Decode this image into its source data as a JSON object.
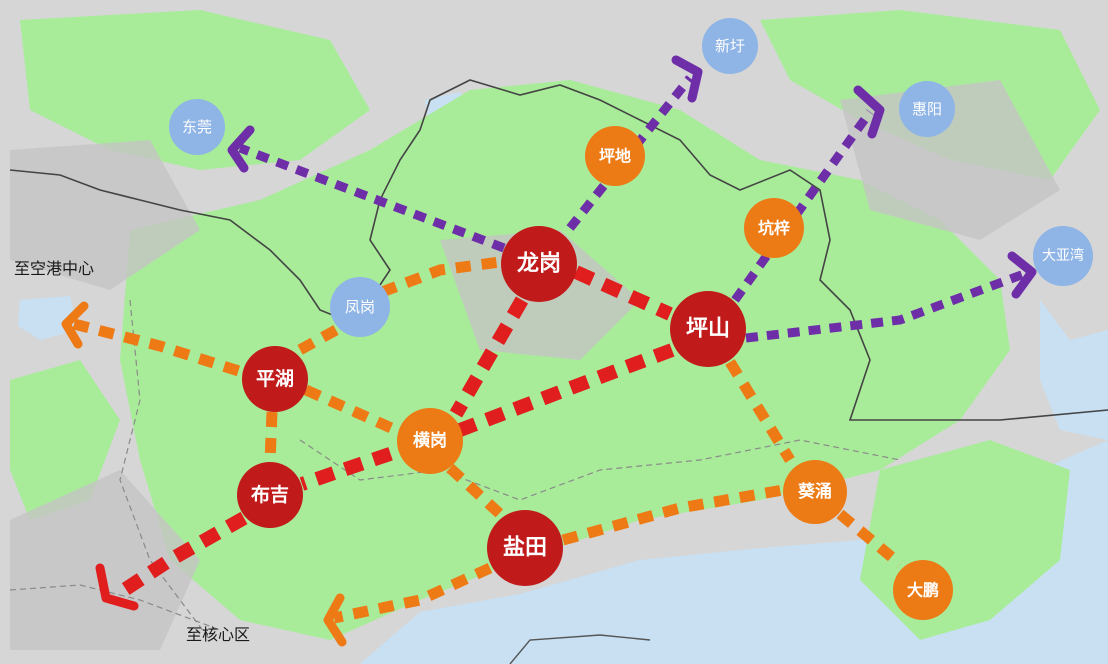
{
  "colors": {
    "sea": "#c8e0f2",
    "land": "#d2d2d2",
    "green": "#a8ec9a",
    "major_node": "#c01a1a",
    "secondary_node": "#ec7a15",
    "external_node": "#8fb4e6",
    "red_corridor": "#e01e1e",
    "orange_corridor": "#ee7a15",
    "purple_corridor": "#6e2ea8"
  },
  "nodes": {
    "longgang": "龙岗",
    "pingshan": "坪山",
    "pinghu": "平湖",
    "buji": "布吉",
    "yantian": "盐田",
    "henggang": "横岗",
    "pingdi": "坪地",
    "kengzi": "坑梓",
    "kuiyong": "葵涌",
    "dapeng": "大鹏",
    "fenggang": "凤岗",
    "dongguan": "东莞",
    "xinxu": "新圩",
    "huiyang": "惠阳",
    "dayawan": "大亚湾"
  },
  "labels": {
    "to_airport_port": "至空港中心",
    "to_core_area": "至核心区"
  }
}
